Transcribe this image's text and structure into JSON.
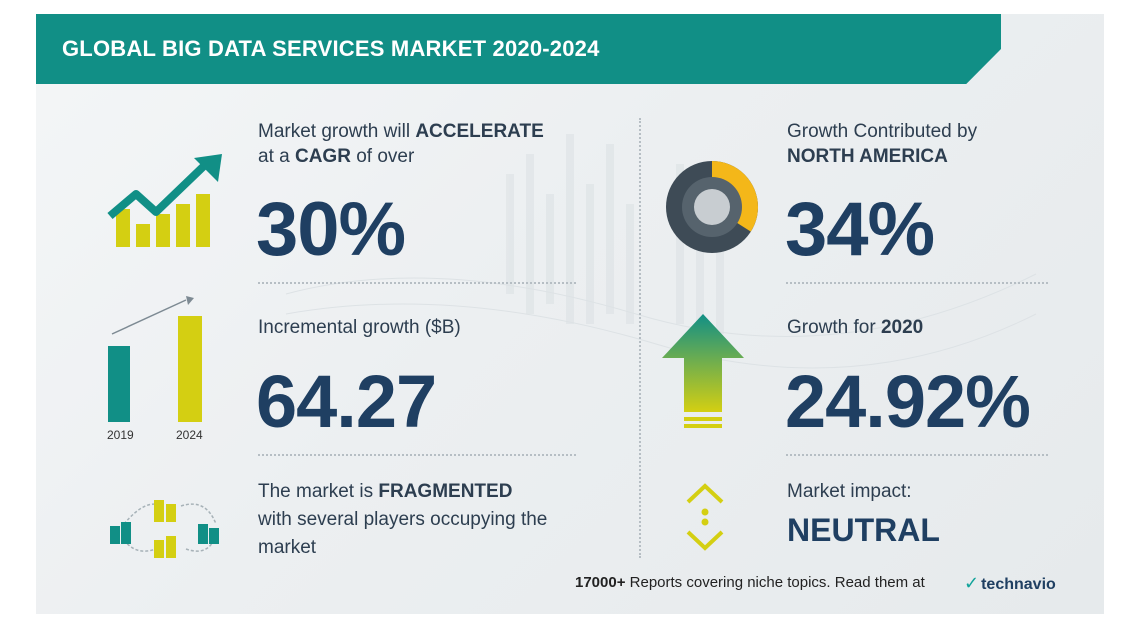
{
  "title": "GLOBAL BIG DATA SERVICES MARKET 2020-2024",
  "cagr": {
    "line1_prefix": "Market growth will",
    "line1_bold": "ACCELERATE",
    "line2_prefix": "at a",
    "line2_bold": "CAGR",
    "line2_suffix": "of over",
    "value": "30%",
    "icon": "growth-chart-icon"
  },
  "incremental": {
    "label": "Incremental growth ($B)",
    "value": "64.27",
    "bar_years": [
      "2019",
      "2024"
    ],
    "icon": "bar-comparison-icon"
  },
  "fragmented": {
    "line1_prefix": "The market is",
    "line1_bold": "FRAGMENTED",
    "line2": "with several players occupying the",
    "line3": "market",
    "icon": "buildings-network-icon"
  },
  "region": {
    "line1": "Growth Contributed by",
    "line2_bold": "NORTH AMERICA",
    "value": "34%",
    "share": 0.34,
    "icon": "donut-chart-icon"
  },
  "yoy": {
    "label_prefix": "Growth for",
    "label_bold": "2020",
    "value": "24.92%",
    "icon": "up-arrow-icon"
  },
  "impact": {
    "label": "Market impact:",
    "value": "NEUTRAL",
    "icon": "neutral-arrows-icon"
  },
  "footer": {
    "count": "17000+",
    "text": "Reports covering niche topics. Read them at",
    "brand": "technavio"
  },
  "colors": {
    "teal": "#118f86",
    "yellow": "#d4cf12",
    "navy": "#1f3f62",
    "donut_dark": "#3e4b56",
    "donut_accent": "#f4b719"
  }
}
